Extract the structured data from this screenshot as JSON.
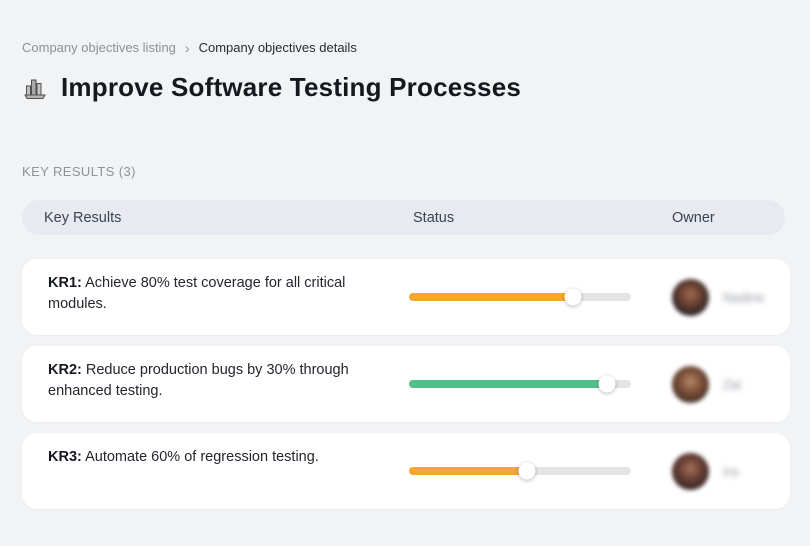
{
  "breadcrumb": {
    "previous": "Company objectives listing",
    "separator": "›",
    "current": "Company objectives details"
  },
  "header": {
    "title": "Improve Software Testing Processes",
    "icon": "bar-chart-building-icon"
  },
  "section": {
    "label": "KEY RESULTS (3)"
  },
  "table": {
    "columns": {
      "kr": "Key Results",
      "status": "Status",
      "owner": "Owner"
    },
    "rows": [
      {
        "kr_label": "KR1:",
        "kr_text": "Achieve 80% test coverage for all critical modules.",
        "progress_percent": 74,
        "progress_color": "#f7a62e",
        "owner_name": "Nadine"
      },
      {
        "kr_label": "KR2:",
        "kr_text": "Reduce production bugs by 30% through enhanced testing.",
        "progress_percent": 89,
        "progress_color": "#52c189",
        "owner_name": "Zai"
      },
      {
        "kr_label": "KR3:",
        "kr_text": "Automate 60% of regression testing.",
        "progress_percent": 53,
        "progress_color": "#f7a62e",
        "owner_name": "Ira"
      }
    ]
  },
  "colors": {
    "page_background": "#f2f3f5",
    "table_head_background": "#e7ebf1",
    "card_background": "#ffffff",
    "track": "#e4e4e6",
    "orange": "#f7a62e",
    "green": "#52c189"
  }
}
